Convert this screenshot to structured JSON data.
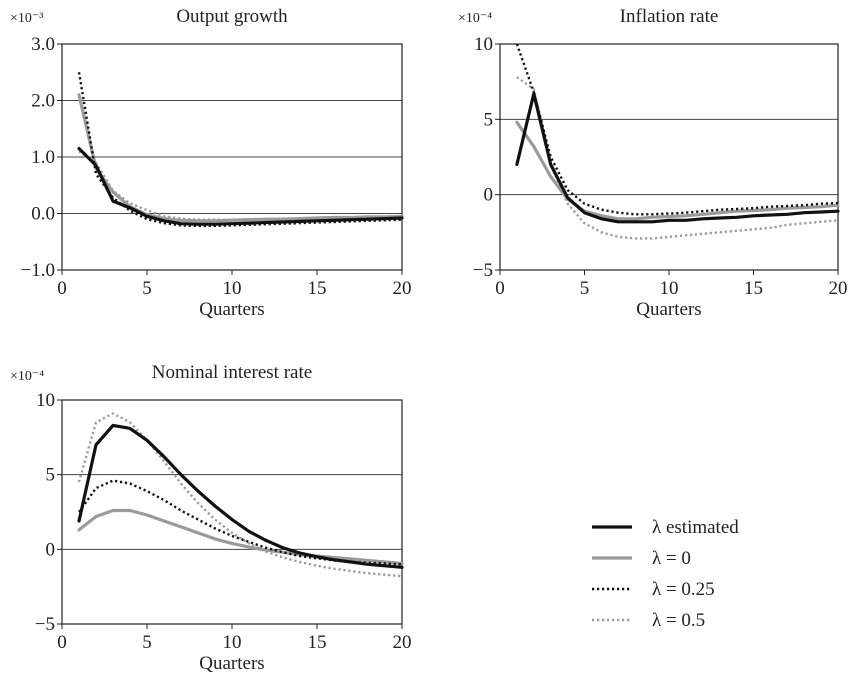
{
  "chart_data": [
    {
      "type": "line",
      "title": "Output growth",
      "xlabel": "Quarters",
      "ylabel": "",
      "y_multiplier": "×10⁻³",
      "xlim": [
        0,
        20
      ],
      "ylim": [
        -1.0,
        3.0
      ],
      "xticks": [
        "0",
        "5",
        "10",
        "15",
        "20"
      ],
      "yticks": [
        "−1.0",
        "0.0",
        "1.0",
        "2.0",
        "3.0"
      ],
      "ytick_values": [
        -1,
        0,
        1,
        2,
        3
      ],
      "grid": "horizontal",
      "x": [
        1,
        2,
        3,
        4,
        5,
        6,
        7,
        8,
        9,
        10,
        11,
        12,
        13,
        14,
        15,
        16,
        17,
        18,
        19,
        20
      ],
      "series": [
        {
          "name": "λ estimated",
          "values": [
            1.15,
            0.85,
            0.22,
            0.1,
            -0.05,
            -0.13,
            -0.18,
            -0.19,
            -0.19,
            -0.18,
            -0.17,
            -0.16,
            -0.15,
            -0.14,
            -0.13,
            -0.12,
            -0.11,
            -0.1,
            -0.09,
            -0.08
          ]
        },
        {
          "name": "λ = 0",
          "values": [
            2.1,
            0.8,
            0.38,
            0.12,
            -0.02,
            -0.09,
            -0.12,
            -0.13,
            -0.13,
            -0.12,
            -0.11,
            -0.1,
            -0.1,
            -0.09,
            -0.08,
            -0.07,
            -0.07,
            -0.06,
            -0.06,
            -0.05
          ]
        },
        {
          "name": "λ = 0.25",
          "values": [
            2.5,
            0.7,
            0.28,
            0.05,
            -0.1,
            -0.17,
            -0.21,
            -0.22,
            -0.22,
            -0.21,
            -0.2,
            -0.19,
            -0.18,
            -0.17,
            -0.16,
            -0.15,
            -0.14,
            -0.13,
            -0.12,
            -0.11
          ]
        },
        {
          "name": "λ = 0.5",
          "values": [
            1.1,
            0.9,
            0.4,
            0.18,
            0.06,
            -0.05,
            -0.09,
            -0.11,
            -0.11,
            -0.11,
            -0.1,
            -0.1,
            -0.09,
            -0.09,
            -0.08,
            -0.07,
            -0.07,
            -0.06,
            -0.06,
            -0.05
          ]
        }
      ]
    },
    {
      "type": "line",
      "title": "Inflation rate",
      "xlabel": "Quarters",
      "ylabel": "",
      "y_multiplier": "×10⁻⁴",
      "xlim": [
        0,
        20
      ],
      "ylim": [
        -5,
        10
      ],
      "xticks": [
        "0",
        "5",
        "10",
        "15",
        "20"
      ],
      "yticks": [
        "−5",
        "0",
        "5",
        "10"
      ],
      "ytick_values": [
        -5,
        0,
        5,
        10
      ],
      "grid": "horizontal",
      "x": [
        1,
        2,
        3,
        4,
        5,
        6,
        7,
        8,
        9,
        10,
        11,
        12,
        13,
        14,
        15,
        16,
        17,
        18,
        19,
        20
      ],
      "series": [
        {
          "name": "λ estimated",
          "values": [
            2.0,
            6.7,
            2.0,
            -0.2,
            -1.2,
            -1.6,
            -1.8,
            -1.8,
            -1.8,
            -1.7,
            -1.7,
            -1.6,
            -1.55,
            -1.5,
            -1.4,
            -1.35,
            -1.3,
            -1.2,
            -1.15,
            -1.1
          ]
        },
        {
          "name": "λ = 0",
          "values": [
            4.8,
            3.2,
            1.2,
            -0.3,
            -1.1,
            -1.4,
            -1.6,
            -1.6,
            -1.5,
            -1.45,
            -1.4,
            -1.3,
            -1.2,
            -1.1,
            -1.05,
            -1.0,
            -0.9,
            -0.85,
            -0.8,
            -0.7
          ]
        },
        {
          "name": "λ = 0.25",
          "values": [
            10.0,
            6.8,
            2.5,
            0.3,
            -0.6,
            -1.0,
            -1.2,
            -1.3,
            -1.3,
            -1.25,
            -1.2,
            -1.1,
            -1.0,
            -0.95,
            -0.9,
            -0.8,
            -0.75,
            -0.7,
            -0.6,
            -0.55
          ]
        },
        {
          "name": "λ = 0.5",
          "values": [
            7.8,
            7.0,
            2.0,
            -0.6,
            -1.9,
            -2.5,
            -2.8,
            -2.9,
            -2.9,
            -2.8,
            -2.7,
            -2.6,
            -2.5,
            -2.4,
            -2.3,
            -2.2,
            -2.0,
            -1.9,
            -1.8,
            -1.7
          ]
        }
      ]
    },
    {
      "type": "line",
      "title": "Nominal interest rate",
      "xlabel": "Quarters",
      "ylabel": "",
      "y_multiplier": "×10⁻⁴",
      "xlim": [
        0,
        20
      ],
      "ylim": [
        -5,
        10
      ],
      "xticks": [
        "0",
        "5",
        "10",
        "15",
        "20"
      ],
      "yticks": [
        "−5",
        "0",
        "5",
        "10"
      ],
      "ytick_values": [
        -5,
        0,
        5,
        10
      ],
      "grid": "horizontal",
      "x": [
        1,
        2,
        3,
        4,
        5,
        6,
        7,
        8,
        9,
        10,
        11,
        12,
        13,
        14,
        15,
        16,
        17,
        18,
        19,
        20
      ],
      "series": [
        {
          "name": "λ estimated",
          "values": [
            1.9,
            7.0,
            8.3,
            8.1,
            7.3,
            6.2,
            5.0,
            3.9,
            2.9,
            2.0,
            1.2,
            0.6,
            0.1,
            -0.25,
            -0.5,
            -0.7,
            -0.85,
            -1.0,
            -1.1,
            -1.2
          ]
        },
        {
          "name": "λ = 0",
          "values": [
            1.3,
            2.2,
            2.6,
            2.6,
            2.3,
            1.9,
            1.5,
            1.1,
            0.7,
            0.4,
            0.15,
            -0.05,
            -0.2,
            -0.35,
            -0.45,
            -0.55,
            -0.65,
            -0.75,
            -0.85,
            -0.95
          ]
        },
        {
          "name": "λ = 0.25",
          "values": [
            2.5,
            4.1,
            4.6,
            4.4,
            3.9,
            3.3,
            2.6,
            2.0,
            1.4,
            0.9,
            0.5,
            0.1,
            -0.2,
            -0.45,
            -0.6,
            -0.75,
            -0.85,
            -0.9,
            -0.95,
            -1.0
          ]
        },
        {
          "name": "λ = 0.5",
          "values": [
            4.5,
            8.5,
            9.1,
            8.5,
            7.3,
            5.9,
            4.4,
            3.1,
            2.0,
            1.1,
            0.4,
            -0.15,
            -0.55,
            -0.85,
            -1.1,
            -1.3,
            -1.45,
            -1.6,
            -1.7,
            -1.8
          ]
        }
      ]
    }
  ],
  "legend": {
    "placement": "bottom-right",
    "items": [
      {
        "label": "λ estimated",
        "color": "#111111",
        "style": "solid-thick"
      },
      {
        "label": "λ = 0",
        "color": "#9a9a9a",
        "style": "solid-thick"
      },
      {
        "label": "λ = 0.25",
        "color": "#111111",
        "style": "dotted"
      },
      {
        "label": "λ = 0.5",
        "color": "#9a9a9a",
        "style": "dotted"
      }
    ]
  },
  "colors": {
    "lambda_estimated": "#111111",
    "lambda_0": "#9a9a9a",
    "lambda_025": "#111111",
    "lambda_05": "#9a9a9a",
    "gridline": "#444444",
    "axis": "#222222"
  }
}
